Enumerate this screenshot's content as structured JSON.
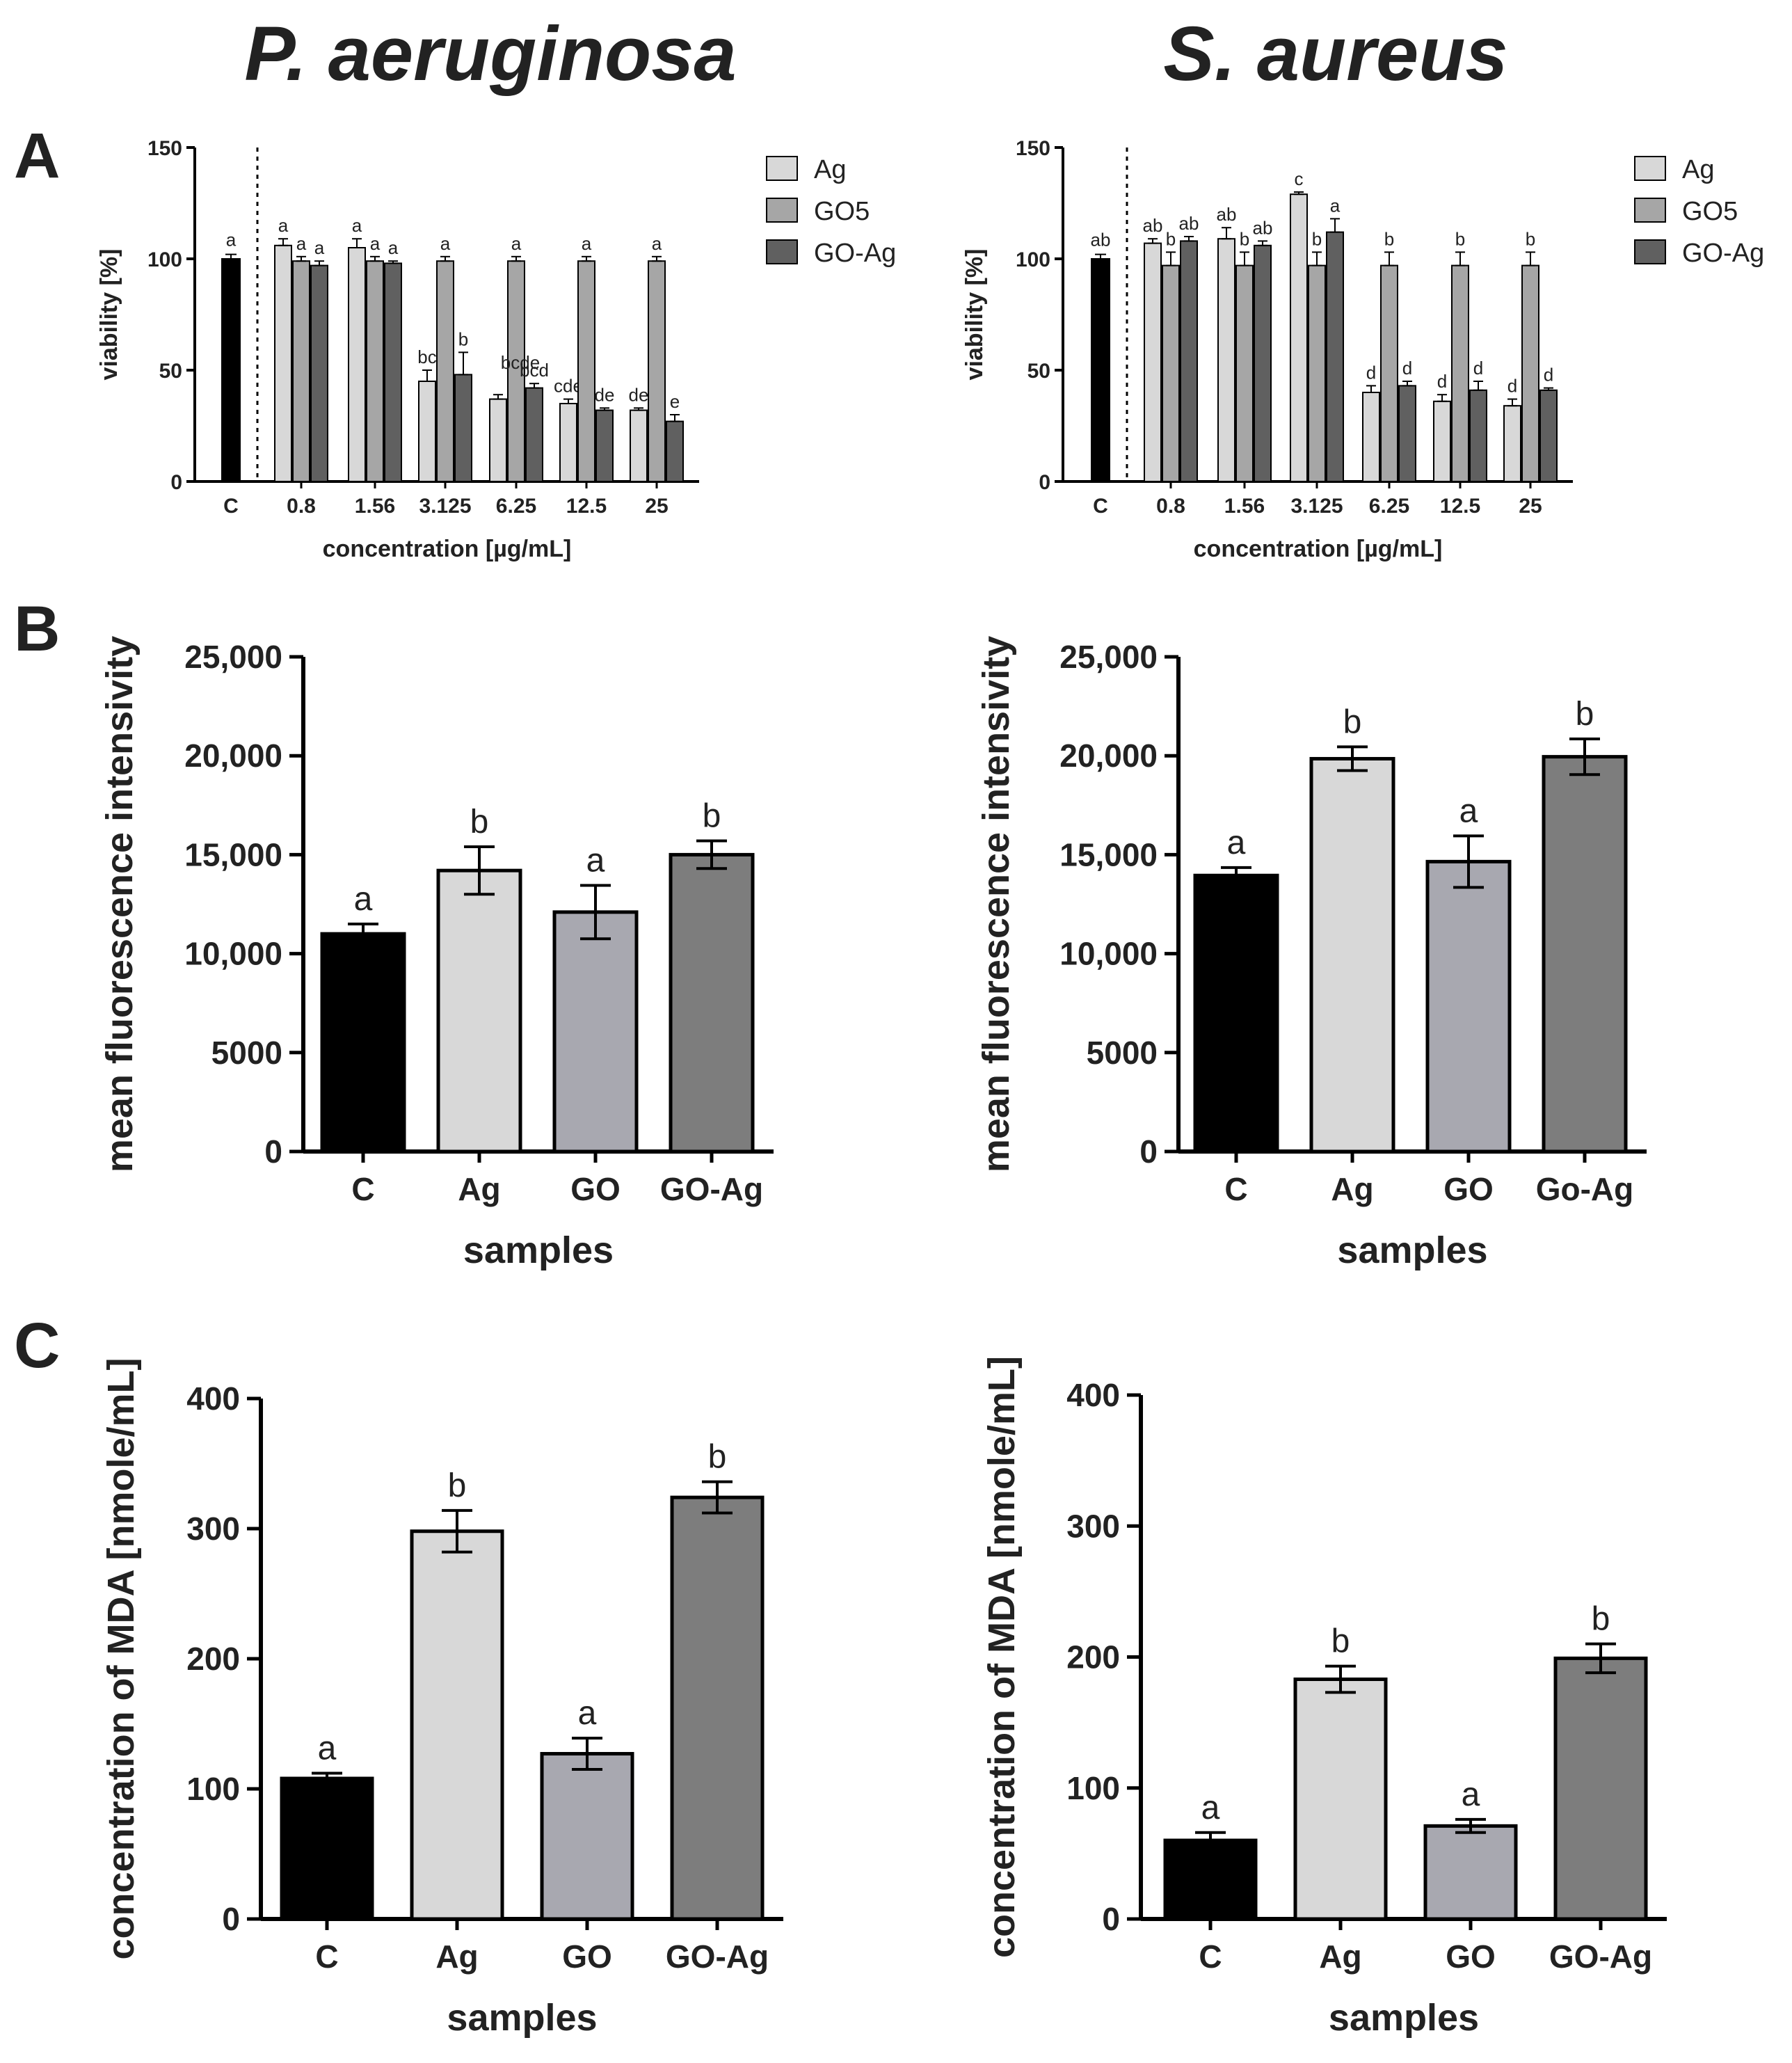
{
  "titles": {
    "left": "P. aeruginosa",
    "right": "S. aureus"
  },
  "panels": {
    "a": "A",
    "b": "B",
    "c": "C"
  },
  "colors": {
    "control": "#000000",
    "ag": "#d8d8d8",
    "go5": "#a6a6a6",
    "goag": "#606060",
    "goB": "#a8a8b0",
    "goagB": "#7d7d7d"
  },
  "chart_data": [
    {
      "id": "a-left",
      "type": "bar",
      "title": "",
      "xlabel": "concentration [µg/mL]",
      "ylabel": "viability [%]",
      "ylim": [
        0,
        150
      ],
      "yticks": [
        "0",
        "50",
        "100",
        "150"
      ],
      "control": {
        "label": "C",
        "value": 100,
        "err": 2,
        "letter": "a"
      },
      "categories": [
        "0.8",
        "1.56",
        "3.125",
        "6.25",
        "12.5",
        "25"
      ],
      "legend": [
        "Ag",
        "GO5",
        "GO-Ag"
      ],
      "series": [
        {
          "name": "Ag",
          "values": [
            106,
            105,
            45,
            37,
            35,
            32
          ],
          "errors": [
            3,
            4,
            5,
            2,
            2,
            1
          ],
          "letters": [
            "a",
            "a",
            "bc",
            "",
            "cde",
            "de"
          ]
        },
        {
          "name": "GO5",
          "values": [
            99,
            99,
            99,
            99,
            99,
            99
          ],
          "errors": [
            2,
            2,
            2,
            2,
            2,
            2
          ],
          "letters": [
            "a",
            "a",
            "a",
            "a",
            "a",
            "a"
          ]
        },
        {
          "name": "GO-Ag",
          "values": [
            97,
            98,
            48,
            42,
            32,
            27
          ],
          "errors": [
            2,
            1,
            10,
            2,
            1,
            3
          ],
          "letters": [
            "a",
            "a",
            "b",
            "bcd",
            "de",
            "e"
          ]
        }
      ],
      "extra_labels": [
        "bcde"
      ]
    },
    {
      "id": "a-right",
      "type": "bar",
      "title": "",
      "xlabel": "concentration [µg/mL]",
      "ylabel": "viability [%]",
      "ylim": [
        0,
        150
      ],
      "yticks": [
        "0",
        "50",
        "100",
        "150"
      ],
      "control": {
        "label": "C",
        "value": 100,
        "err": 2,
        "letter": "ab"
      },
      "categories": [
        "0.8",
        "1.56",
        "3.125",
        "6.25",
        "12.5",
        "25"
      ],
      "legend": [
        "Ag",
        "GO5",
        "GO-Ag"
      ],
      "series": [
        {
          "name": "Ag",
          "values": [
            107,
            109,
            129,
            40,
            36,
            34
          ],
          "errors": [
            2,
            5,
            1,
            3,
            3,
            3
          ],
          "letters": [
            "ab",
            "ab",
            "c",
            "d",
            "d",
            "d"
          ]
        },
        {
          "name": "GO5",
          "values": [
            97,
            97,
            97,
            97,
            97,
            97
          ],
          "errors": [
            6,
            6,
            6,
            6,
            6,
            6
          ],
          "letters": [
            "b",
            "b",
            "b",
            "b",
            "b",
            "b"
          ]
        },
        {
          "name": "GO-Ag",
          "values": [
            108,
            106,
            112,
            43,
            41,
            41
          ],
          "errors": [
            2,
            2,
            6,
            2,
            4,
            1
          ],
          "letters": [
            "ab",
            "ab",
            "a",
            "d",
            "d",
            "d"
          ]
        }
      ]
    },
    {
      "id": "b-left",
      "type": "bar",
      "title": "",
      "xlabel": "samples",
      "ylabel": "mean fluorescence intensivity",
      "ylim": [
        0,
        25000
      ],
      "yticks": [
        "0",
        "5000",
        "10,000",
        "15,000",
        "20,000",
        "25,000"
      ],
      "categories": [
        "C",
        "Ag",
        "GO",
        "GO-Ag"
      ],
      "values": [
        11000,
        14200,
        12100,
        15000
      ],
      "errors": [
        500,
        1200,
        1350,
        700
      ],
      "letters": [
        "a",
        "b",
        "a",
        "b"
      ]
    },
    {
      "id": "b-right",
      "type": "bar",
      "title": "",
      "xlabel": "samples",
      "ylabel": "mean fluorescence intensivity",
      "ylim": [
        0,
        25000
      ],
      "yticks": [
        "0",
        "5000",
        "10,000",
        "15,000",
        "20,000",
        "25,000"
      ],
      "categories": [
        "C",
        "Ag",
        "GO",
        "Go-Ag"
      ],
      "values": [
        13950,
        19850,
        14650,
        19950
      ],
      "errors": [
        400,
        600,
        1300,
        900
      ],
      "letters": [
        "a",
        "b",
        "a",
        "b"
      ]
    },
    {
      "id": "c-left",
      "type": "bar",
      "title": "",
      "xlabel": "samples",
      "ylabel": "concentration of MDA [nmole/mL]",
      "ylim": [
        0,
        400
      ],
      "yticks": [
        "0",
        "100",
        "200",
        "300",
        "400"
      ],
      "categories": [
        "C",
        "Ag",
        "GO",
        "GO-Ag"
      ],
      "values": [
        108,
        298,
        127,
        324
      ],
      "errors": [
        4,
        16,
        12,
        12
      ],
      "letters": [
        "a",
        "b",
        "a",
        "b"
      ]
    },
    {
      "id": "c-right",
      "type": "bar",
      "title": "",
      "xlabel": "samples",
      "ylabel": "concentration of MDA [nmole/mL]",
      "ylim": [
        0,
        400
      ],
      "yticks": [
        "0",
        "100",
        "200",
        "300",
        "400"
      ],
      "categories": [
        "C",
        "Ag",
        "GO",
        "GO-Ag"
      ],
      "values": [
        60,
        183,
        71,
        199
      ],
      "errors": [
        6,
        10,
        5,
        11
      ],
      "letters": [
        "a",
        "b",
        "a",
        "b"
      ]
    }
  ]
}
